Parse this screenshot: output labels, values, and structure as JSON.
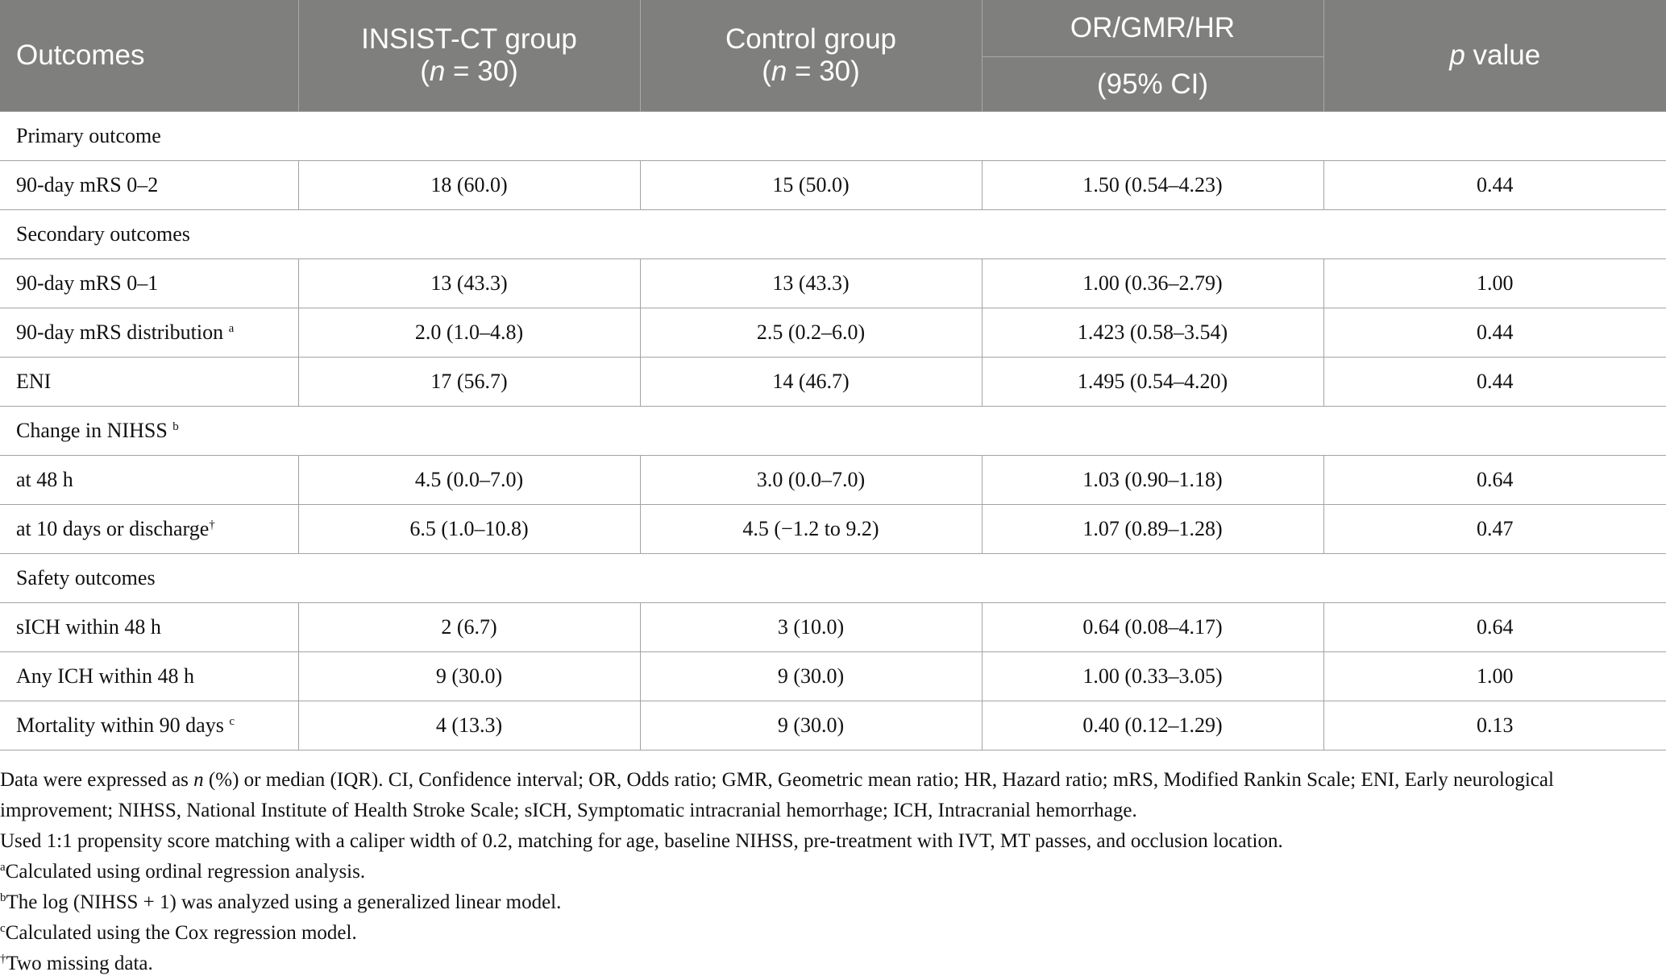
{
  "table": {
    "headers": {
      "outcomes": "Outcomes",
      "insist_title": "INSIST-CT group",
      "insist_n_var": "n",
      "insist_n_rest": " = 30)",
      "control_title": "Control group",
      "control_n_var": "n",
      "control_n_rest": " = 30)",
      "ratio_title": "OR/GMR/HR",
      "ratio_ci": "(95% CI)",
      "p_var": "p",
      "p_rest": " value",
      "open_paren": "("
    },
    "sections": [
      {
        "title": "Primary outcome",
        "title_sup": "",
        "rows": [
          {
            "label": "90-day mRS 0–2",
            "sup": "",
            "insist": "18 (60.0)",
            "control": "15 (50.0)",
            "ratio": "1.50 (0.54–4.23)",
            "p": "0.44"
          }
        ]
      },
      {
        "title": "Secondary outcomes",
        "title_sup": "",
        "rows": [
          {
            "label": "90-day mRS 0–1",
            "sup": "",
            "insist": "13 (43.3)",
            "control": "13 (43.3)",
            "ratio": "1.00 (0.36–2.79)",
            "p": "1.00"
          },
          {
            "label": "90-day mRS distribution ",
            "sup": "a",
            "insist": "2.0 (1.0–4.8)",
            "control": "2.5 (0.2–6.0)",
            "ratio": "1.423 (0.58–3.54)",
            "p": "0.44"
          },
          {
            "label": "ENI",
            "sup": "",
            "insist": "17 (56.7)",
            "control": "14 (46.7)",
            "ratio": "1.495 (0.54–4.20)",
            "p": "0.44"
          }
        ]
      },
      {
        "title": "Change in NIHSS ",
        "title_sup": "b",
        "rows": [
          {
            "label": "at 48 h",
            "sup": "",
            "insist": "4.5 (0.0–7.0)",
            "control": "3.0 (0.0–7.0)",
            "ratio": "1.03 (0.90–1.18)",
            "p": "0.64"
          },
          {
            "label": "at 10 days or discharge",
            "sup": "†",
            "insist": "6.5 (1.0–10.8)",
            "control": "4.5 (−1.2 to 9.2)",
            "ratio": "1.07 (0.89–1.28)",
            "p": "0.47"
          }
        ]
      },
      {
        "title": "Safety outcomes",
        "title_sup": "",
        "rows": [
          {
            "label": "sICH within 48 h",
            "sup": "",
            "insist": "2 (6.7)",
            "control": "3 (10.0)",
            "ratio": "0.64 (0.08–4.17)",
            "p": "0.64"
          },
          {
            "label": "Any ICH within 48 h",
            "sup": "",
            "insist": "9 (30.0)",
            "control": "9 (30.0)",
            "ratio": "1.00 (0.33–3.05)",
            "p": "1.00"
          },
          {
            "label": "Mortality within 90 days ",
            "sup": "c",
            "insist": "4 (13.3)",
            "control": "9 (30.0)",
            "ratio": "0.40 (0.12–1.29)",
            "p": "0.13"
          }
        ]
      }
    ]
  },
  "notes": {
    "line1_pre": "Data were expressed as ",
    "line1_var": "n",
    "line1_post": " (%) or median (IQR). CI, Confidence interval; OR, Odds ratio; GMR, Geometric mean ratio; HR, Hazard ratio; mRS, Modified Rankin Scale; ENI, Early neurological",
    "line2": "improvement; NIHSS, National Institute of Health Stroke Scale; sICH, Symptomatic intracranial hemorrhage; ICH, Intracranial hemorrhage.",
    "line3": "Used 1:1 propensity score matching with a caliper width of 0.2, matching for age, baseline NIHSS, pre-treatment with IVT, MT passes, and occlusion location.",
    "footnotes": [
      {
        "mark": "a",
        "text": "Calculated using ordinal regression analysis."
      },
      {
        "mark": "b",
        "text": "The log (NIHSS + 1) was analyzed using a generalized linear model."
      },
      {
        "mark": "c",
        "text": "Calculated using the Cox regression model."
      },
      {
        "mark": "†",
        "text": "Two missing data."
      }
    ]
  }
}
